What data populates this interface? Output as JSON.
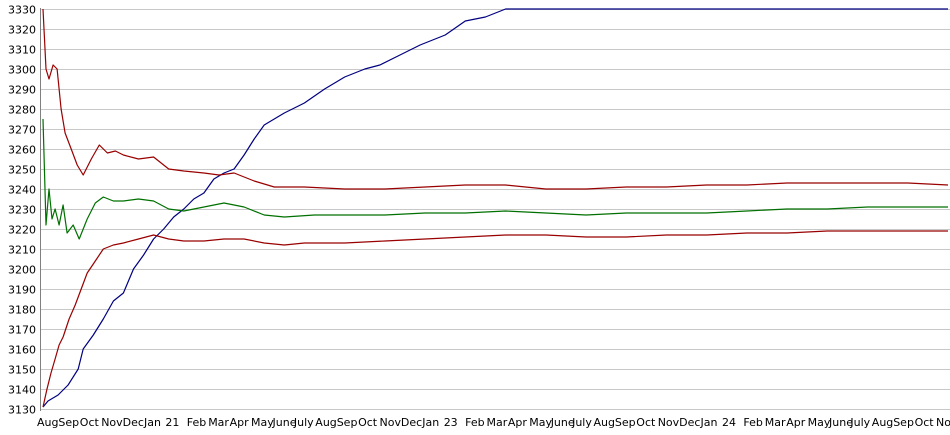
{
  "chart_data": {
    "type": "line",
    "grid": true,
    "legend": "none",
    "ylim": [
      3130,
      3330
    ],
    "y_ticks": [
      "3130",
      "3140",
      "3150",
      "3160",
      "3170",
      "3180",
      "3190",
      "3200",
      "3210",
      "3220",
      "3230",
      "3240",
      "3250",
      "3260",
      "3270",
      "3280",
      "3290",
      "3300",
      "3310",
      "3320",
      "3330"
    ],
    "x_ticks": [
      "Aug",
      "Sep",
      "Oct",
      "Nov",
      "Dec",
      "Jan",
      "21",
      "Feb",
      "Mar",
      "Apr",
      "May",
      "June",
      "July",
      "Aug",
      "Sep",
      "Oct",
      "Nov",
      "Dec",
      "Jan",
      "23",
      "Feb",
      "Mar",
      "Apr",
      "May",
      "June",
      "July",
      "Aug",
      "Sep",
      "Oct",
      "Nov",
      "Dec",
      "Jan",
      "24",
      "Feb",
      "Mar",
      "Apr",
      "May",
      "June",
      "July",
      "Aug",
      "Sep",
      "Oct",
      "No"
    ],
    "x_range": [
      0,
      900
    ],
    "series": [
      {
        "color": "#000080",
        "points": [
          [
            0,
            3131
          ],
          [
            5,
            3134
          ],
          [
            15,
            3137
          ],
          [
            25,
            3142
          ],
          [
            35,
            3150
          ],
          [
            40,
            3160
          ],
          [
            50,
            3167
          ],
          [
            60,
            3175
          ],
          [
            70,
            3184
          ],
          [
            80,
            3188
          ],
          [
            90,
            3200
          ],
          [
            100,
            3207
          ],
          [
            110,
            3215
          ],
          [
            120,
            3220
          ],
          [
            130,
            3226
          ],
          [
            140,
            3230
          ],
          [
            150,
            3235
          ],
          [
            160,
            3238
          ],
          [
            170,
            3245
          ],
          [
            180,
            3248
          ],
          [
            190,
            3250
          ],
          [
            200,
            3257
          ],
          [
            210,
            3265
          ],
          [
            220,
            3272
          ],
          [
            240,
            3278
          ],
          [
            260,
            3283
          ],
          [
            280,
            3290
          ],
          [
            300,
            3296
          ],
          [
            320,
            3300
          ],
          [
            335,
            3302
          ],
          [
            355,
            3307
          ],
          [
            375,
            3312
          ],
          [
            400,
            3317
          ],
          [
            420,
            3324
          ],
          [
            440,
            3326
          ],
          [
            450,
            3328
          ],
          [
            460,
            3330
          ],
          [
            480,
            3330
          ],
          [
            600,
            3330
          ],
          [
            900,
            3330
          ]
        ]
      },
      {
        "color": "#990000",
        "points": [
          [
            0,
            3330
          ],
          [
            3,
            3300
          ],
          [
            6,
            3295
          ],
          [
            10,
            3302
          ],
          [
            14,
            3300
          ],
          [
            18,
            3280
          ],
          [
            22,
            3268
          ],
          [
            28,
            3260
          ],
          [
            34,
            3252
          ],
          [
            40,
            3247
          ],
          [
            48,
            3255
          ],
          [
            56,
            3262
          ],
          [
            64,
            3258
          ],
          [
            72,
            3259
          ],
          [
            80,
            3257
          ],
          [
            95,
            3255
          ],
          [
            110,
            3256
          ],
          [
            125,
            3250
          ],
          [
            140,
            3249
          ],
          [
            160,
            3248
          ],
          [
            175,
            3247
          ],
          [
            190,
            3248
          ],
          [
            210,
            3244
          ],
          [
            230,
            3241
          ],
          [
            260,
            3241
          ],
          [
            300,
            3240
          ],
          [
            340,
            3240
          ],
          [
            380,
            3241
          ],
          [
            420,
            3242
          ],
          [
            460,
            3242
          ],
          [
            500,
            3240
          ],
          [
            540,
            3240
          ],
          [
            580,
            3241
          ],
          [
            620,
            3241
          ],
          [
            660,
            3242
          ],
          [
            700,
            3242
          ],
          [
            740,
            3243
          ],
          [
            780,
            3243
          ],
          [
            820,
            3243
          ],
          [
            860,
            3243
          ],
          [
            900,
            3242
          ]
        ]
      },
      {
        "color": "#007000",
        "points": [
          [
            0,
            3275
          ],
          [
            3,
            3222
          ],
          [
            6,
            3240
          ],
          [
            9,
            3225
          ],
          [
            12,
            3230
          ],
          [
            16,
            3222
          ],
          [
            20,
            3232
          ],
          [
            24,
            3218
          ],
          [
            30,
            3222
          ],
          [
            36,
            3215
          ],
          [
            44,
            3225
          ],
          [
            52,
            3233
          ],
          [
            60,
            3236
          ],
          [
            70,
            3234
          ],
          [
            80,
            3234
          ],
          [
            95,
            3235
          ],
          [
            110,
            3234
          ],
          [
            125,
            3230
          ],
          [
            140,
            3229
          ],
          [
            160,
            3231
          ],
          [
            180,
            3233
          ],
          [
            200,
            3231
          ],
          [
            220,
            3227
          ],
          [
            240,
            3226
          ],
          [
            270,
            3227
          ],
          [
            300,
            3227
          ],
          [
            340,
            3227
          ],
          [
            380,
            3228
          ],
          [
            420,
            3228
          ],
          [
            460,
            3229
          ],
          [
            500,
            3228
          ],
          [
            540,
            3227
          ],
          [
            580,
            3228
          ],
          [
            620,
            3228
          ],
          [
            660,
            3228
          ],
          [
            700,
            3229
          ],
          [
            740,
            3230
          ],
          [
            780,
            3230
          ],
          [
            820,
            3231
          ],
          [
            860,
            3231
          ],
          [
            900,
            3231
          ]
        ]
      },
      {
        "color": "#990000",
        "points": [
          [
            0,
            3131
          ],
          [
            4,
            3140
          ],
          [
            8,
            3148
          ],
          [
            12,
            3155
          ],
          [
            16,
            3162
          ],
          [
            20,
            3166
          ],
          [
            26,
            3175
          ],
          [
            32,
            3182
          ],
          [
            38,
            3190
          ],
          [
            44,
            3198
          ],
          [
            52,
            3204
          ],
          [
            60,
            3210
          ],
          [
            70,
            3212
          ],
          [
            80,
            3213
          ],
          [
            95,
            3215
          ],
          [
            110,
            3217
          ],
          [
            125,
            3215
          ],
          [
            140,
            3214
          ],
          [
            160,
            3214
          ],
          [
            180,
            3215
          ],
          [
            200,
            3215
          ],
          [
            220,
            3213
          ],
          [
            240,
            3212
          ],
          [
            260,
            3213
          ],
          [
            300,
            3213
          ],
          [
            340,
            3214
          ],
          [
            380,
            3215
          ],
          [
            420,
            3216
          ],
          [
            460,
            3217
          ],
          [
            500,
            3217
          ],
          [
            540,
            3216
          ],
          [
            580,
            3216
          ],
          [
            620,
            3217
          ],
          [
            660,
            3217
          ],
          [
            700,
            3218
          ],
          [
            740,
            3218
          ],
          [
            780,
            3219
          ],
          [
            820,
            3219
          ],
          [
            860,
            3219
          ],
          [
            900,
            3219
          ]
        ]
      }
    ]
  }
}
